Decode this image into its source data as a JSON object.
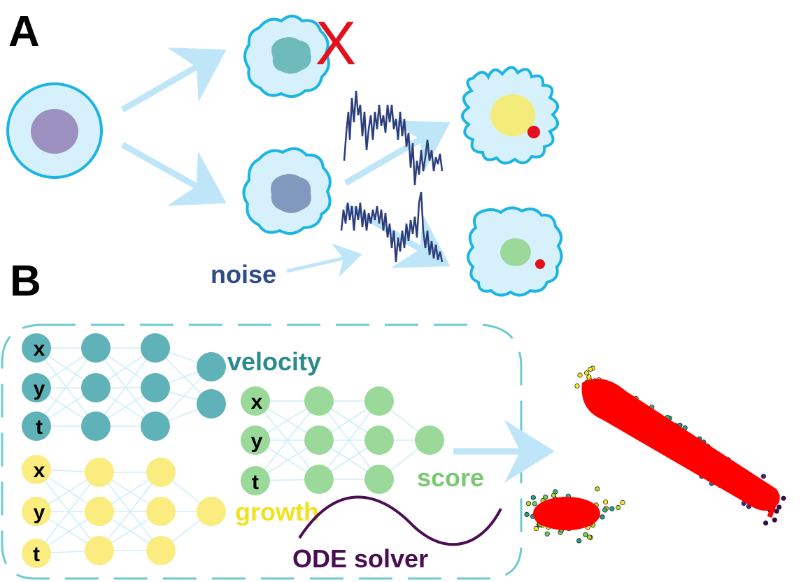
{
  "panels": {
    "a": "A",
    "b": "B"
  },
  "labels": {
    "noise": "noise",
    "velocity": "velocity",
    "score": "score",
    "growth": "growth",
    "ode_solver": "ODE solver",
    "death_mark": "X"
  },
  "networks": {
    "velocity_inputs": [
      "x",
      "y",
      "t"
    ],
    "growth_inputs": [
      "x",
      "y",
      "t"
    ],
    "score_inputs": [
      "x",
      "y",
      "t"
    ]
  },
  "colors": {
    "cell_fill": "#d6f1fb",
    "cell_stroke": "#1cb4e3",
    "arrow": "#bfe6f8",
    "noise_text": "#2f4b8a",
    "noise_trace": "#2c3e7c",
    "velocity_node": "#5fb2b8",
    "velocity_text": "#2a8a8e",
    "growth_node": "#fbec80",
    "growth_text": "#f2e11f",
    "score_node": "#9bd99a",
    "score_text": "#79c872",
    "ode_text": "#4a0f52",
    "dashed_box": "#6ccbd2",
    "scatter_red": "#ff0000",
    "death_x": "#e3101d"
  }
}
